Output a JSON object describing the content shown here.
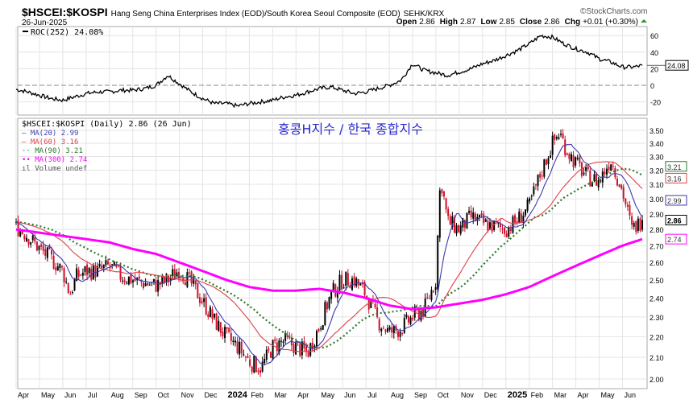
{
  "header": {
    "symbol": "$HSCEI:$KOSPI",
    "description": "Hang Seng China Enterprises Index (EOD)/South Korea Seoul Composite (EOD)",
    "exchange": "SEHK/KRX",
    "date": "26-Jun-2025",
    "watermark": "©StockCharts.com",
    "open_label": "Open",
    "open": "2.86",
    "high_label": "High",
    "high": "2.87",
    "low_label": "Low",
    "low": "2.85",
    "close_label": "Close",
    "close": "2.86",
    "chg_label": "Chg",
    "chg": "+0.01 (+0.30%)"
  },
  "annotation": "홍콩H지수 / 한국 종합지수",
  "colors": {
    "ma20": "#3a3ab0",
    "ma60": "#e0404a",
    "ma90": "#2a7a2a",
    "ma300": "#ff00ff",
    "down": "#d0102a",
    "up": "#000000"
  },
  "chart_data": [
    {
      "type": "line",
      "title": "ROC(252) 24.08%",
      "last_label": "24.08",
      "ylim": [
        -30,
        70
      ],
      "yticks": [
        "60",
        "40",
        "20",
        "0",
        "-20"
      ],
      "ytick_values": [
        60,
        40,
        20,
        0,
        -20
      ],
      "x_month_index": [
        0,
        0.5,
        1,
        1.5,
        2,
        2.5,
        3,
        3.5,
        4,
        4.5,
        5,
        5.5,
        6,
        6.5,
        7,
        7.5,
        8,
        8.5,
        9,
        9.5,
        10,
        10.5,
        11,
        11.5,
        12,
        12.5,
        13,
        13.5,
        14,
        14.5,
        15,
        15.5,
        16,
        16.5,
        17,
        17.5,
        18,
        18.5,
        19,
        19.5,
        20,
        20.5,
        21,
        21.5,
        22,
        22.5,
        23,
        23.5,
        24,
        24.5,
        25,
        25.5,
        26,
        26.5,
        26.85
      ],
      "values": [
        -5,
        -8,
        -12,
        -16,
        -18,
        -14,
        -10,
        -8,
        -8,
        -6,
        -6,
        -4,
        0,
        12,
        2,
        -8,
        -16,
        -22,
        -22,
        -25,
        -22,
        -20,
        -18,
        -14,
        -12,
        -8,
        -4,
        -2,
        -6,
        -10,
        -8,
        -4,
        0,
        6,
        26,
        18,
        15,
        12,
        16,
        20,
        26,
        30,
        36,
        42,
        50,
        60,
        58,
        50,
        44,
        40,
        32,
        28,
        22,
        22,
        24
      ]
    },
    {
      "type": "bar",
      "title": "$HSCEI:$KOSPI (Daily) 2.86 (26 Jun)",
      "scale": "log",
      "ylim": [
        1.96,
        3.62
      ],
      "yticks": [
        "3.50",
        "3.40",
        "3.30",
        "3.20",
        "3.10",
        "3.00",
        "2.90",
        "2.80",
        "2.70",
        "2.60",
        "2.50",
        "2.40",
        "2.30",
        "2.20",
        "2.10",
        "2.00"
      ],
      "ytick_values": [
        3.5,
        3.4,
        3.3,
        3.2,
        3.1,
        3.0,
        2.9,
        2.8,
        2.7,
        2.6,
        2.5,
        2.4,
        2.3,
        2.2,
        2.1,
        2.0
      ],
      "x_labels": [
        "Apr",
        "May",
        "Jun",
        "Jul",
        "Aug",
        "Sep",
        "Oct",
        "Nov",
        "Dec",
        "2024",
        "Feb",
        "Mar",
        "Apr",
        "May",
        "Jun",
        "Jul",
        "Aug",
        "Sep",
        "Oct",
        "Nov",
        "Dec",
        "2025",
        "Feb",
        "Mar",
        "Apr",
        "May",
        "Jun"
      ],
      "x_month_index": [
        0,
        0.5,
        1,
        1.5,
        2,
        2.3,
        2.6,
        3,
        3.5,
        4,
        4.5,
        5,
        5.5,
        6,
        6.5,
        7,
        7.5,
        8,
        8.5,
        9,
        9.5,
        10,
        10.5,
        11,
        11.5,
        12,
        12.5,
        13,
        13.5,
        14,
        14.5,
        15,
        15.5,
        16,
        16.5,
        17,
        17.5,
        18,
        18.2,
        18.5,
        19,
        19.5,
        20,
        20.5,
        21,
        21.5,
        22,
        22.5,
        23,
        23.3,
        23.6,
        24,
        24.5,
        25,
        25.5,
        26,
        26.4,
        26.85
      ],
      "close": [
        2.82,
        2.76,
        2.68,
        2.62,
        2.55,
        2.42,
        2.52,
        2.55,
        2.55,
        2.58,
        2.52,
        2.5,
        2.48,
        2.47,
        2.5,
        2.56,
        2.48,
        2.38,
        2.28,
        2.2,
        2.15,
        2.08,
        2.05,
        2.15,
        2.18,
        2.15,
        2.12,
        2.25,
        2.42,
        2.5,
        2.5,
        2.42,
        2.28,
        2.22,
        2.24,
        2.3,
        2.34,
        2.5,
        3.15,
        2.85,
        2.8,
        2.88,
        2.84,
        2.82,
        2.8,
        2.86,
        2.95,
        3.18,
        3.4,
        3.48,
        3.35,
        3.25,
        3.15,
        3.12,
        3.28,
        3.05,
        2.8,
        2.86
      ],
      "legend": [
        {
          "key": "price",
          "label": "$HSCEI:$KOSPI (Daily) 2.86 (26 Jun)"
        },
        {
          "key": "ma20",
          "label": "MA(20) 2.99",
          "value": "2.99",
          "period": 20
        },
        {
          "key": "ma60",
          "label": "MA(60) 3.16",
          "value": "3.16",
          "period": 60
        },
        {
          "key": "ma90",
          "label": "MA(90) 3.21",
          "value": "3.21",
          "period": 90
        },
        {
          "key": "ma300",
          "label": "MA(300) 2.74",
          "value": "2.74",
          "period": 300
        },
        {
          "key": "volume",
          "label": "Volume undef"
        }
      ],
      "ma300_month_index": [
        0,
        1,
        2,
        3,
        4,
        5,
        6,
        7,
        8,
        9,
        10,
        11,
        12,
        13,
        14,
        15,
        16,
        17,
        18,
        19,
        20,
        21,
        22,
        23,
        24,
        25,
        26,
        26.85
      ],
      "ma300": [
        2.8,
        2.78,
        2.76,
        2.74,
        2.72,
        2.68,
        2.65,
        2.6,
        2.55,
        2.5,
        2.46,
        2.44,
        2.44,
        2.45,
        2.43,
        2.4,
        2.36,
        2.34,
        2.35,
        2.37,
        2.39,
        2.42,
        2.46,
        2.52,
        2.58,
        2.64,
        2.7,
        2.74
      ],
      "last_close_label": "2.86"
    }
  ]
}
